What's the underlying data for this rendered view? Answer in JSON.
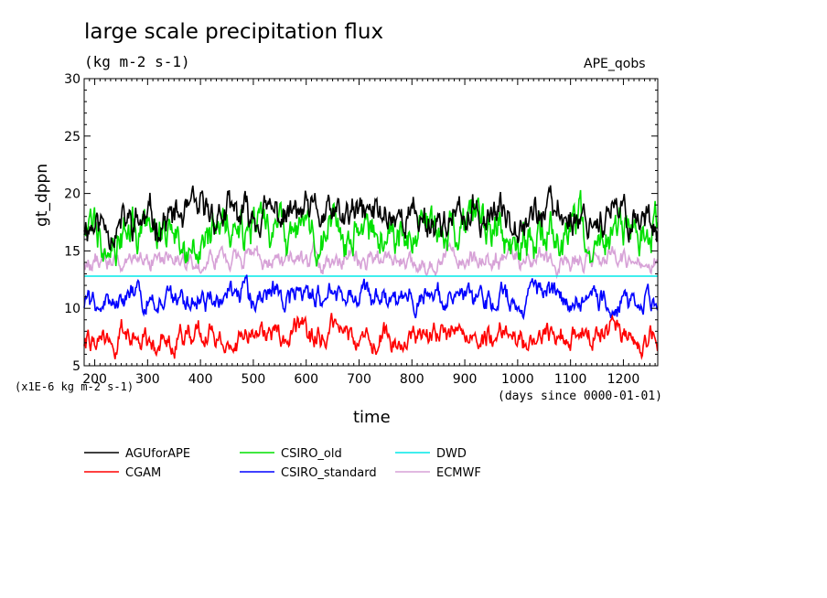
{
  "header": {
    "title": "large scale precipitation flux",
    "units": "(kg m-2 s-1)",
    "tag": "APE_qobs"
  },
  "axis_notes": {
    "scale_note": "(x1E-6 kg m-2 s-1)",
    "x_units_note": "(days since 0000-01-01)"
  },
  "chart_data": {
    "type": "line",
    "title": "large scale precipitation flux",
    "subtitle": "(kg m-2 s-1)",
    "xlabel": "time",
    "ylabel": "gt_dppn",
    "xlim": [
      180,
      1265
    ],
    "ylim": [
      5,
      30
    ],
    "xticks": [
      200,
      300,
      400,
      500,
      600,
      700,
      800,
      900,
      1000,
      1100,
      1200
    ],
    "yticks": [
      5,
      10,
      15,
      20,
      25,
      30
    ],
    "grid": false,
    "legend_position": "bottom",
    "series": [
      {
        "name": "AGUforAPE",
        "color": "#000000",
        "x": [
          180,
          240,
          300,
          360,
          420,
          480,
          540,
          600,
          660,
          720,
          780,
          840,
          900,
          960,
          1020,
          1080,
          1140,
          1200,
          1265
        ],
        "values": [
          17.5,
          17.2,
          17.6,
          17.9,
          18.3,
          18.0,
          18.1,
          18.2,
          17.8,
          18.3,
          18.2,
          17.6,
          17.8,
          18.1,
          18.4,
          18.2,
          17.9,
          18.0,
          17.8
        ],
        "noise": 2.2,
        "seed": 11
      },
      {
        "name": "CGAM",
        "color": "#ff0000",
        "x": [
          180,
          240,
          300,
          360,
          420,
          480,
          540,
          600,
          660,
          720,
          780,
          840,
          900,
          960,
          1020,
          1080,
          1140,
          1200,
          1265
        ],
        "values": [
          7.2,
          7.3,
          7.4,
          7.6,
          7.5,
          7.6,
          7.7,
          7.8,
          7.5,
          7.4,
          7.6,
          7.7,
          7.6,
          7.5,
          7.6,
          7.7,
          7.6,
          7.5,
          7.5
        ],
        "noise": 1.5,
        "seed": 22
      },
      {
        "name": "CSIRO_old",
        "color": "#00e000",
        "x": [
          180,
          240,
          300,
          360,
          420,
          480,
          540,
          600,
          660,
          720,
          780,
          840,
          900,
          960,
          1020,
          1080,
          1140,
          1200,
          1265
        ],
        "values": [
          17.2,
          16.6,
          17.0,
          16.8,
          16.3,
          16.5,
          16.4,
          16.2,
          16.5,
          16.6,
          16.4,
          16.7,
          17.3,
          17.0,
          16.5,
          16.7,
          16.9,
          16.8,
          16.2
        ],
        "noise": 2.6,
        "seed": 33
      },
      {
        "name": "CSIRO_standard",
        "color": "#0000ff",
        "x": [
          180,
          240,
          300,
          360,
          420,
          480,
          540,
          600,
          660,
          720,
          780,
          840,
          900,
          960,
          1020,
          1080,
          1140,
          1200,
          1265
        ],
        "values": [
          10.5,
          10.6,
          10.8,
          10.9,
          10.7,
          10.9,
          11.1,
          10.8,
          10.9,
          10.9,
          10.7,
          11.0,
          10.8,
          10.9,
          11.0,
          11.0,
          10.8,
          10.7,
          10.6
        ],
        "noise": 1.5,
        "seed": 44
      },
      {
        "name": "DWD",
        "color": "#00e8e8",
        "x": [
          180,
          1265
        ],
        "values": [
          12.8,
          12.8
        ],
        "noise": 0,
        "seed": 55
      },
      {
        "name": "ECMWF",
        "color": "#d7a2d7",
        "x": [
          180,
          240,
          300,
          360,
          420,
          480,
          540,
          600,
          660,
          720,
          780,
          840,
          900,
          960,
          1020,
          1080,
          1140,
          1200,
          1265
        ],
        "values": [
          14.3,
          14.1,
          14.3,
          14.4,
          14.2,
          14.3,
          14.3,
          14.4,
          14.2,
          14.3,
          14.1,
          14.2,
          14.4,
          14.3,
          14.2,
          14.1,
          14.3,
          14.2,
          14.1
        ],
        "noise": 1.2,
        "seed": 66
      }
    ]
  }
}
